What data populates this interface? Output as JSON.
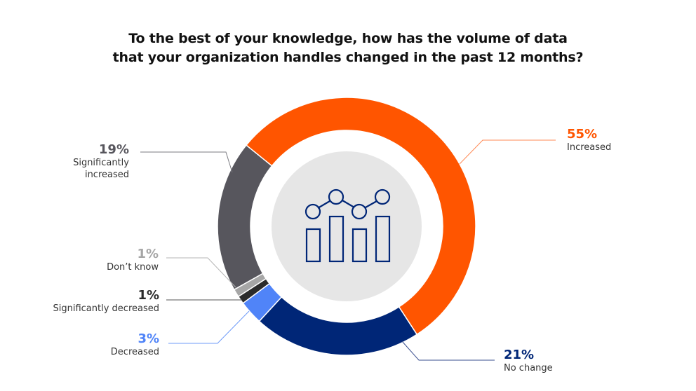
{
  "chart_data": {
    "type": "pie",
    "variant": "donut",
    "title": "To the best of your knowledge, how has the volume of data that your organization handles changed in the past 12 months?",
    "title_lines": [
      "To the best of your knowledge, how has the volume of data",
      "that your organization handles changed in the past 12 months?"
    ],
    "categories": [
      "Increased",
      "No change",
      "Decreased",
      "Significantly decreased",
      "Don’t know",
      "Significantly increased"
    ],
    "values": [
      55,
      21,
      3,
      1,
      1,
      19
    ],
    "unit": "%",
    "colors": [
      "#ff5500",
      "#002677",
      "#5084f8",
      "#2b2b2b",
      "#a6a6a6",
      "#57565d"
    ],
    "start_angle_deg": 309,
    "direction": "clockwise",
    "center_icon": "bar-line-chart-icon",
    "legend_position": "leader-line labels"
  },
  "slices": [
    {
      "key": "increased",
      "pct": "55%",
      "label_lines": [
        "Increased"
      ],
      "color": "#ff5500",
      "pct_color": "#ff5500"
    },
    {
      "key": "no-change",
      "pct": "21%",
      "label_lines": [
        "No change"
      ],
      "color": "#002677",
      "pct_color": "#002677"
    },
    {
      "key": "decreased",
      "pct": "3%",
      "label_lines": [
        "Decreased"
      ],
      "color": "#5084f8",
      "pct_color": "#5084f8"
    },
    {
      "key": "significantly-decreased",
      "pct": "1%",
      "label_lines": [
        "Significantly decreased"
      ],
      "color": "#2b2b2b",
      "pct_color": "#2b2b2b"
    },
    {
      "key": "dont-know",
      "pct": "1%",
      "label_lines": [
        "Don’t know"
      ],
      "color": "#a6a6a6",
      "pct_color": "#a6a6a6"
    },
    {
      "key": "significantly-increased",
      "pct": "19%",
      "label_lines": [
        "Significantly",
        "increased"
      ],
      "color": "#57565d",
      "pct_color": "#57565d"
    }
  ],
  "colors": {
    "title": "#111111",
    "label_text": "#333333",
    "center_circle": "#e6e6e6",
    "icon_stroke": "#002677"
  }
}
